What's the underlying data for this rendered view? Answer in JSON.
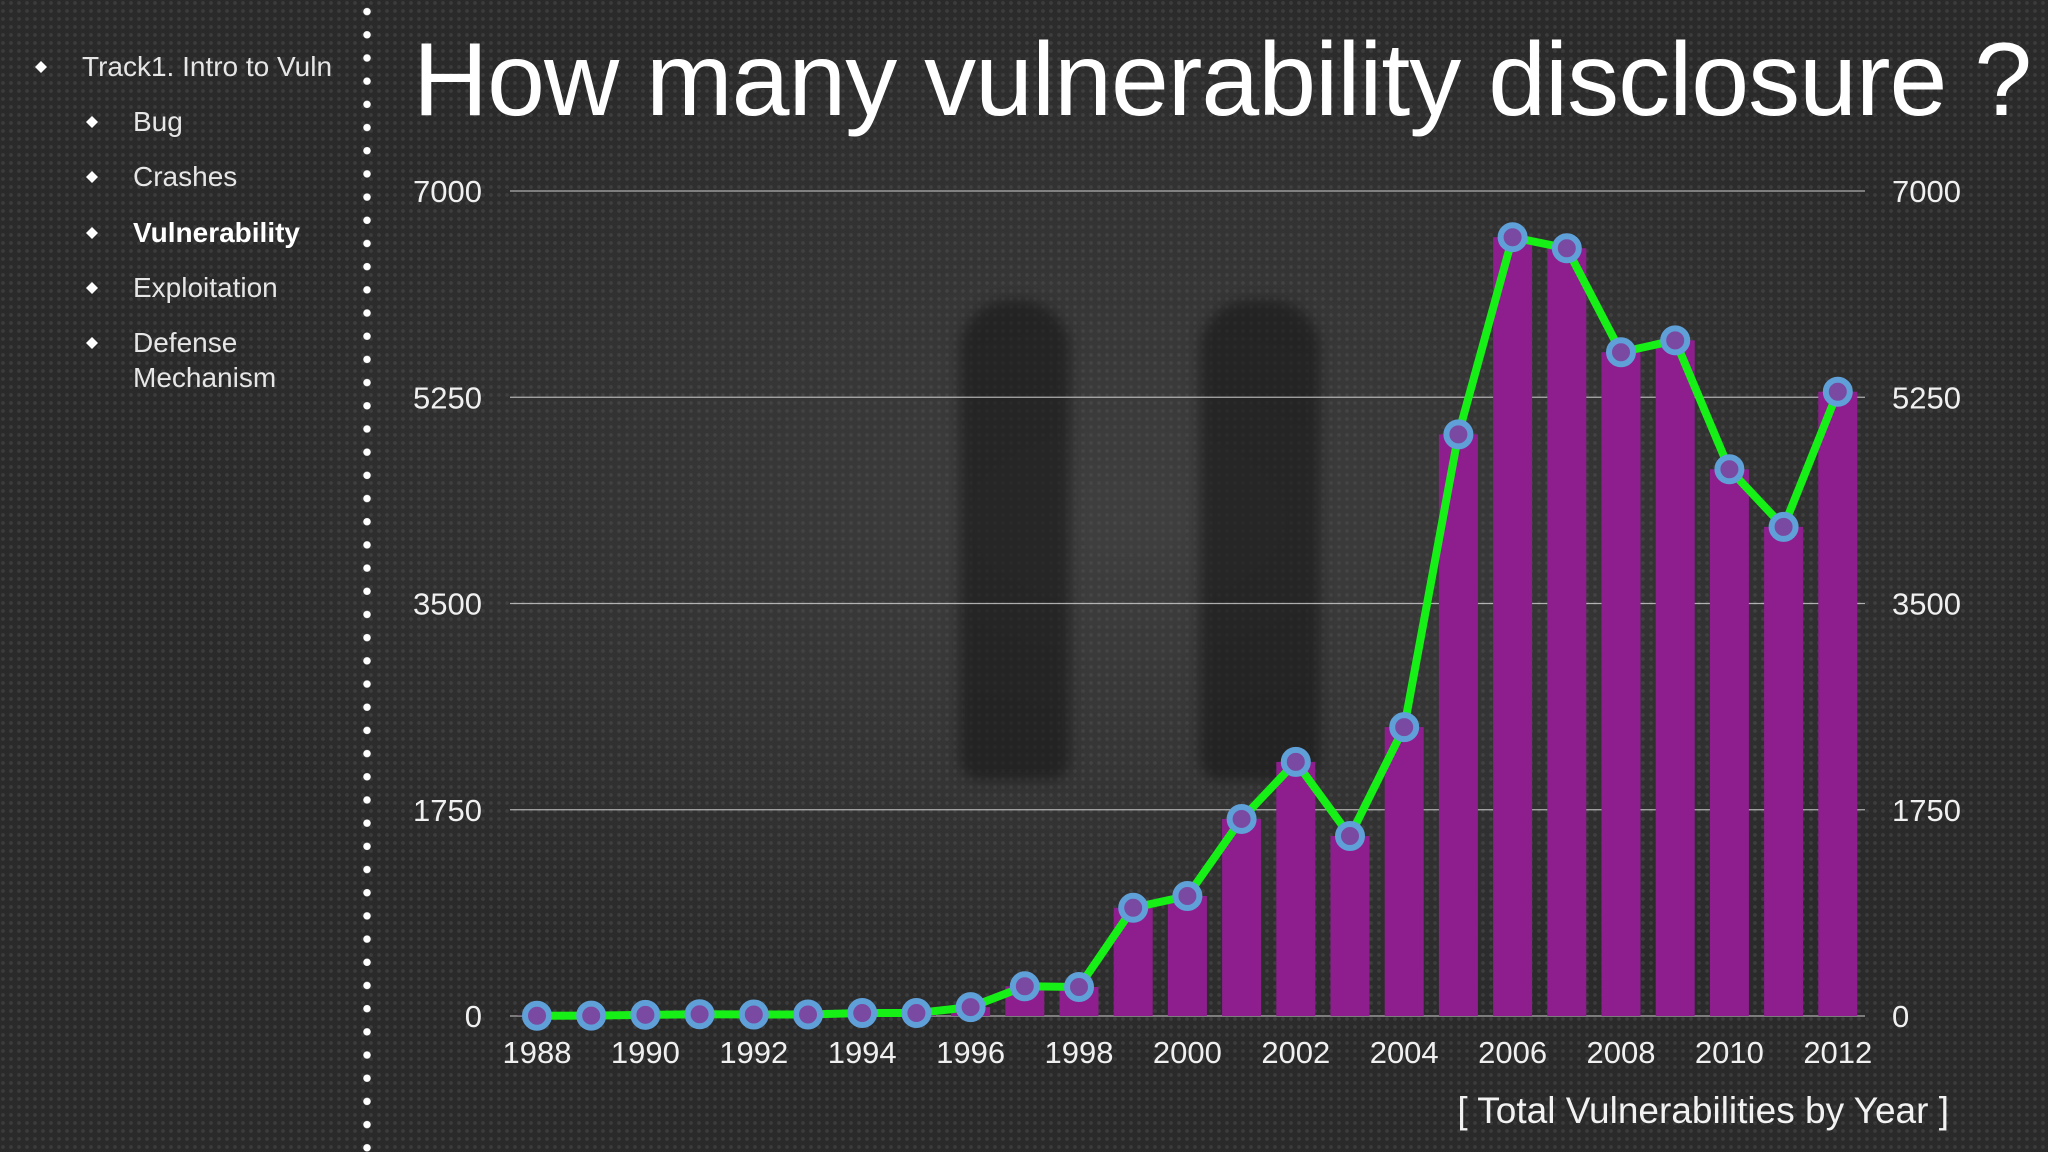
{
  "sidebar": {
    "items": [
      {
        "label": "Track1. Intro to Vuln",
        "level": 0,
        "active": false
      },
      {
        "label": "Bug",
        "level": 1,
        "active": false
      },
      {
        "label": "Crashes",
        "level": 1,
        "active": false
      },
      {
        "label": "Vulnerability",
        "level": 1,
        "active": true
      },
      {
        "label": "Exploitation",
        "level": 1,
        "active": false
      },
      {
        "label": "Defense Mechanism",
        "level": 1,
        "active": false
      }
    ]
  },
  "title": "How many vulnerability disclosure ?",
  "caption": "[ Total Vulnerabilities by Year ]",
  "colors": {
    "bar": "#8e1e8e",
    "line": "#16f016",
    "marker_fill": "#7a4aa2",
    "marker_stroke": "#5fa0d8",
    "grid": "#cfcfcf"
  },
  "chart_data": {
    "type": "bar",
    "title": "How many vulnerability disclosure ?",
    "xlabel": "",
    "ylabel": "",
    "ylim": [
      0,
      7000
    ],
    "yticks": [
      "0",
      "1750",
      "3500",
      "5250",
      "7000"
    ],
    "secondary_yticks": [
      "0",
      "1750",
      "3500",
      "5250",
      "7000"
    ],
    "x_tick_labels": [
      "1988",
      "1990",
      "1992",
      "1994",
      "1996",
      "1998",
      "2000",
      "2002",
      "2004",
      "2006",
      "2008",
      "2010",
      "2012"
    ],
    "grid": true,
    "categories": [
      "1988",
      "1989",
      "1990",
      "1991",
      "1992",
      "1993",
      "1994",
      "1995",
      "1996",
      "1997",
      "1998",
      "1999",
      "2000",
      "2001",
      "2002",
      "2003",
      "2004",
      "2005",
      "2006",
      "2007",
      "2008",
      "2009",
      "2010",
      "2011",
      "2012"
    ],
    "series": [
      {
        "kind": "bar",
        "values": [
          2,
          3,
          10,
          15,
          13,
          13,
          25,
          25,
          75,
          252,
          246,
          918,
          1018,
          1672,
          2156,
          1527,
          2451,
          4935,
          6608,
          6514,
          5632,
          5733,
          4639,
          4150,
          5297
        ]
      },
      {
        "kind": "line",
        "values": [
          2,
          3,
          10,
          15,
          13,
          13,
          25,
          25,
          75,
          252,
          246,
          918,
          1018,
          1672,
          2156,
          1527,
          2451,
          4935,
          6608,
          6514,
          5632,
          5733,
          4639,
          4150,
          5297
        ]
      }
    ]
  }
}
